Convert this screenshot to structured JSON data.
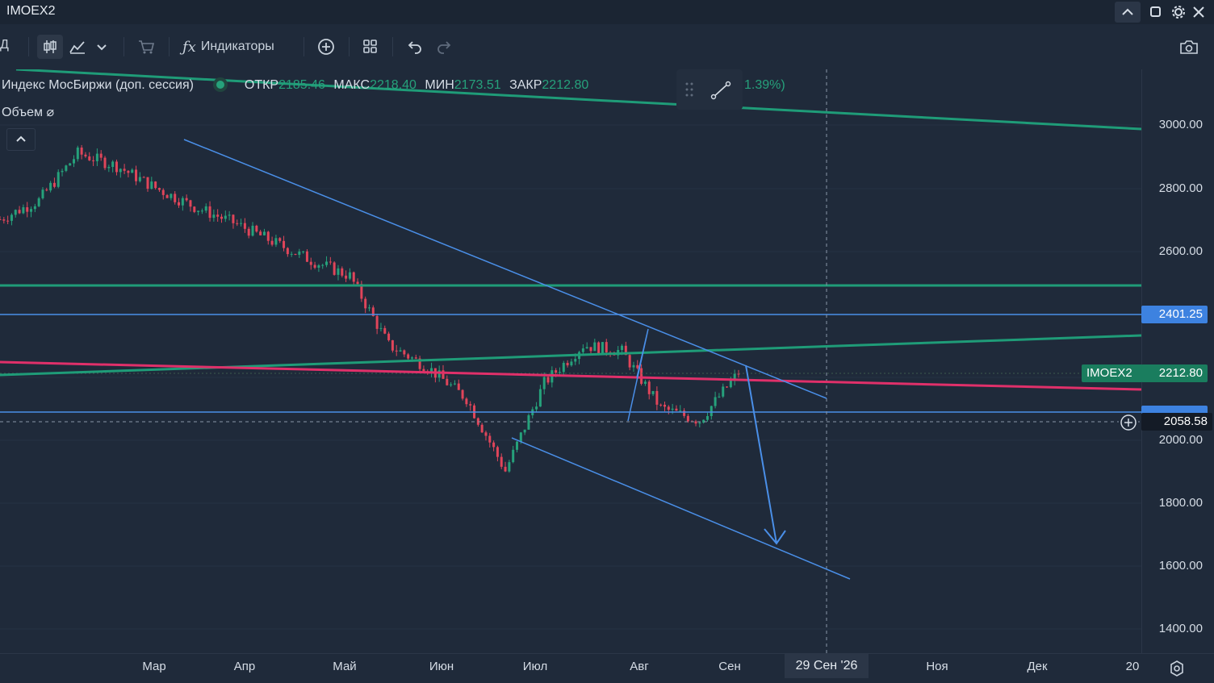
{
  "window": {
    "title": "IMOEX2"
  },
  "toolbar": {
    "interval_label": "Д",
    "indicators_label": "Индикаторы"
  },
  "legend": {
    "instrument": "Индекс МосБиржи (доп. сессия)",
    "open_label": "ОТКР",
    "open_value": "2185.46",
    "high_label": "МАКС",
    "high_value": "2218.40",
    "low_label": "МИН",
    "low_value": "2173.51",
    "close_label": "ЗАКР",
    "close_value": "2212.80",
    "change_value": "1.39%)",
    "volume_label": "Объем"
  },
  "price_scale": {
    "ticks": [
      "3000.00",
      "2800.00",
      "2600.00",
      "2000.00",
      "1800.00",
      "1600.00",
      "1400.00"
    ],
    "level_tag": "2401.25",
    "last_symbol": "IMOEX2",
    "last_price": "2212.80",
    "crosshair_price": "2058.58"
  },
  "time_axis": {
    "months": [
      "Мар",
      "Апр",
      "Май",
      "Июн",
      "Июл",
      "Авг",
      "Сен",
      "Ноя",
      "Дек",
      "20"
    ],
    "crosshair_date": "29 Сен '26"
  },
  "colors": {
    "background": "#1f2a3a",
    "bull": "#26a17b",
    "bear": "#e0455a",
    "trend_blue": "#4a8fe8",
    "green_line": "#1f9c78",
    "red_line": "#e0306a"
  },
  "chart_data": {
    "type": "candlestick",
    "ylim": [
      1300,
      3150
    ],
    "close_path": [
      [
        "Фев-20",
        2700
      ],
      [
        "Мар-01",
        2760
      ],
      [
        "Мар-10",
        2910
      ],
      [
        "Мар-20",
        2870
      ],
      [
        "Апр-01",
        2800
      ],
      [
        "Апр-15",
        2740
      ],
      [
        "Май-01",
        2690
      ],
      [
        "Май-15",
        2630
      ],
      [
        "Июн-01",
        2570
      ],
      [
        "Июн-15",
        2520
      ],
      [
        "Июн-25",
        2300
      ],
      [
        "Июл-05",
        2230
      ],
      [
        "Июл-15",
        2130
      ],
      [
        "Июл-20",
        1900
      ],
      [
        "Июл-28",
        2180
      ],
      [
        "Авг-05",
        2300
      ],
      [
        "Авг-12",
        2280
      ],
      [
        "Авг-20",
        2100
      ],
      [
        "Авг-28",
        2060
      ],
      [
        "Сен-05",
        2212.8
      ]
    ]
  }
}
